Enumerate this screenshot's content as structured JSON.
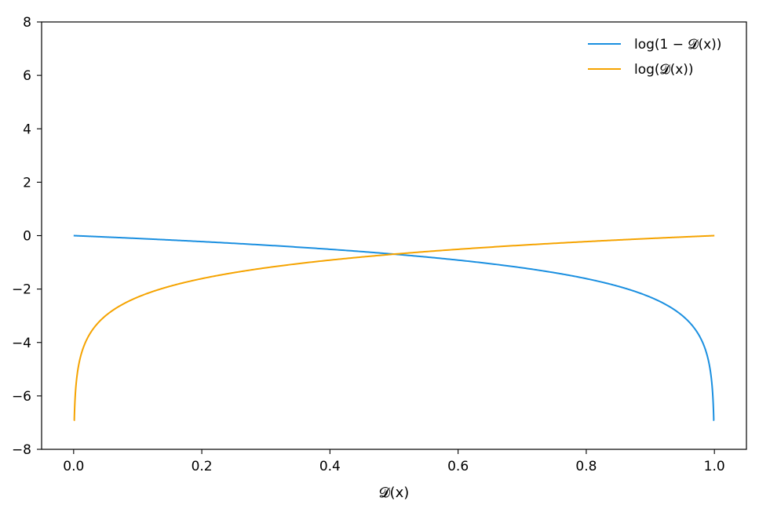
{
  "chart_data": {
    "type": "line",
    "title": "",
    "xlabel": "𝓓(x)",
    "ylabel": "",
    "xlim": [
      -0.05,
      1.05
    ],
    "ylim": [
      -8,
      8
    ],
    "xticks": [
      0.0,
      0.2,
      0.4,
      0.6,
      0.8,
      1.0
    ],
    "xtick_labels": [
      "0.0",
      "0.2",
      "0.4",
      "0.6",
      "0.8",
      "1.0"
    ],
    "yticks": [
      -8,
      -6,
      -4,
      -2,
      0,
      2,
      4,
      6,
      8
    ],
    "ytick_labels": [
      "−8",
      "−6",
      "−4",
      "−2",
      "0",
      "2",
      "4",
      "6",
      "8"
    ],
    "grid": false,
    "legend_position": "top-right",
    "series": [
      {
        "name": "log(1 − 𝓓(x))",
        "color": "#1a8fe0",
        "function": "log1m",
        "x": [
          0.0,
          0.05,
          0.1,
          0.2,
          0.3,
          0.4,
          0.5,
          0.6,
          0.7,
          0.8,
          0.9,
          0.95,
          0.98,
          0.99,
          0.995,
          0.999
        ],
        "y": [
          0.0,
          -0.051,
          -0.105,
          -0.223,
          -0.357,
          -0.511,
          -0.693,
          -0.916,
          -1.204,
          -1.609,
          -2.303,
          -2.996,
          -3.912,
          -4.605,
          -5.298,
          -6.908
        ]
      },
      {
        "name": "log(𝓓(x))",
        "color": "#f5a300",
        "function": "log",
        "x": [
          0.001,
          0.005,
          0.01,
          0.02,
          0.05,
          0.1,
          0.2,
          0.3,
          0.4,
          0.5,
          0.6,
          0.7,
          0.8,
          0.9,
          0.95,
          1.0
        ],
        "y": [
          -6.908,
          -5.298,
          -4.605,
          -3.912,
          -2.996,
          -2.303,
          -1.609,
          -1.204,
          -0.916,
          -0.693,
          -0.511,
          -0.357,
          -0.223,
          -0.105,
          -0.051,
          0.0
        ]
      }
    ]
  }
}
